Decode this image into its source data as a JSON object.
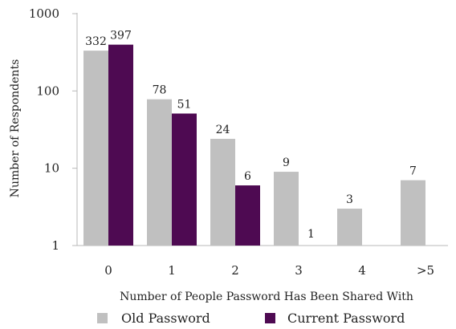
{
  "chart_data": {
    "type": "bar",
    "title": "",
    "xlabel": "Number of People Password Has Been Shared With",
    "ylabel": "Number of Respondents",
    "yscale": "log",
    "ylim": [
      1,
      1000
    ],
    "yticks": [
      1,
      10,
      100,
      1000
    ],
    "ytick_labels": [
      "1",
      "10",
      "100",
      "1000"
    ],
    "categories": [
      "0",
      "1",
      "2",
      "3",
      "4",
      ">5"
    ],
    "series": [
      {
        "name": "Old Password",
        "color": "#c0c0c0",
        "values": [
          332,
          78,
          24,
          9,
          3,
          7
        ]
      },
      {
        "name": "Current Password",
        "color": "#4e0a52",
        "values": [
          397,
          51,
          6,
          1,
          null,
          null
        ]
      }
    ],
    "data_labels": {
      "Old Password": [
        "332",
        "78",
        "24",
        "9",
        "3",
        "7"
      ],
      "Current Password": [
        "397",
        "51",
        "6",
        "1",
        "",
        ""
      ]
    },
    "grid": false,
    "legend_position": "bottom"
  }
}
